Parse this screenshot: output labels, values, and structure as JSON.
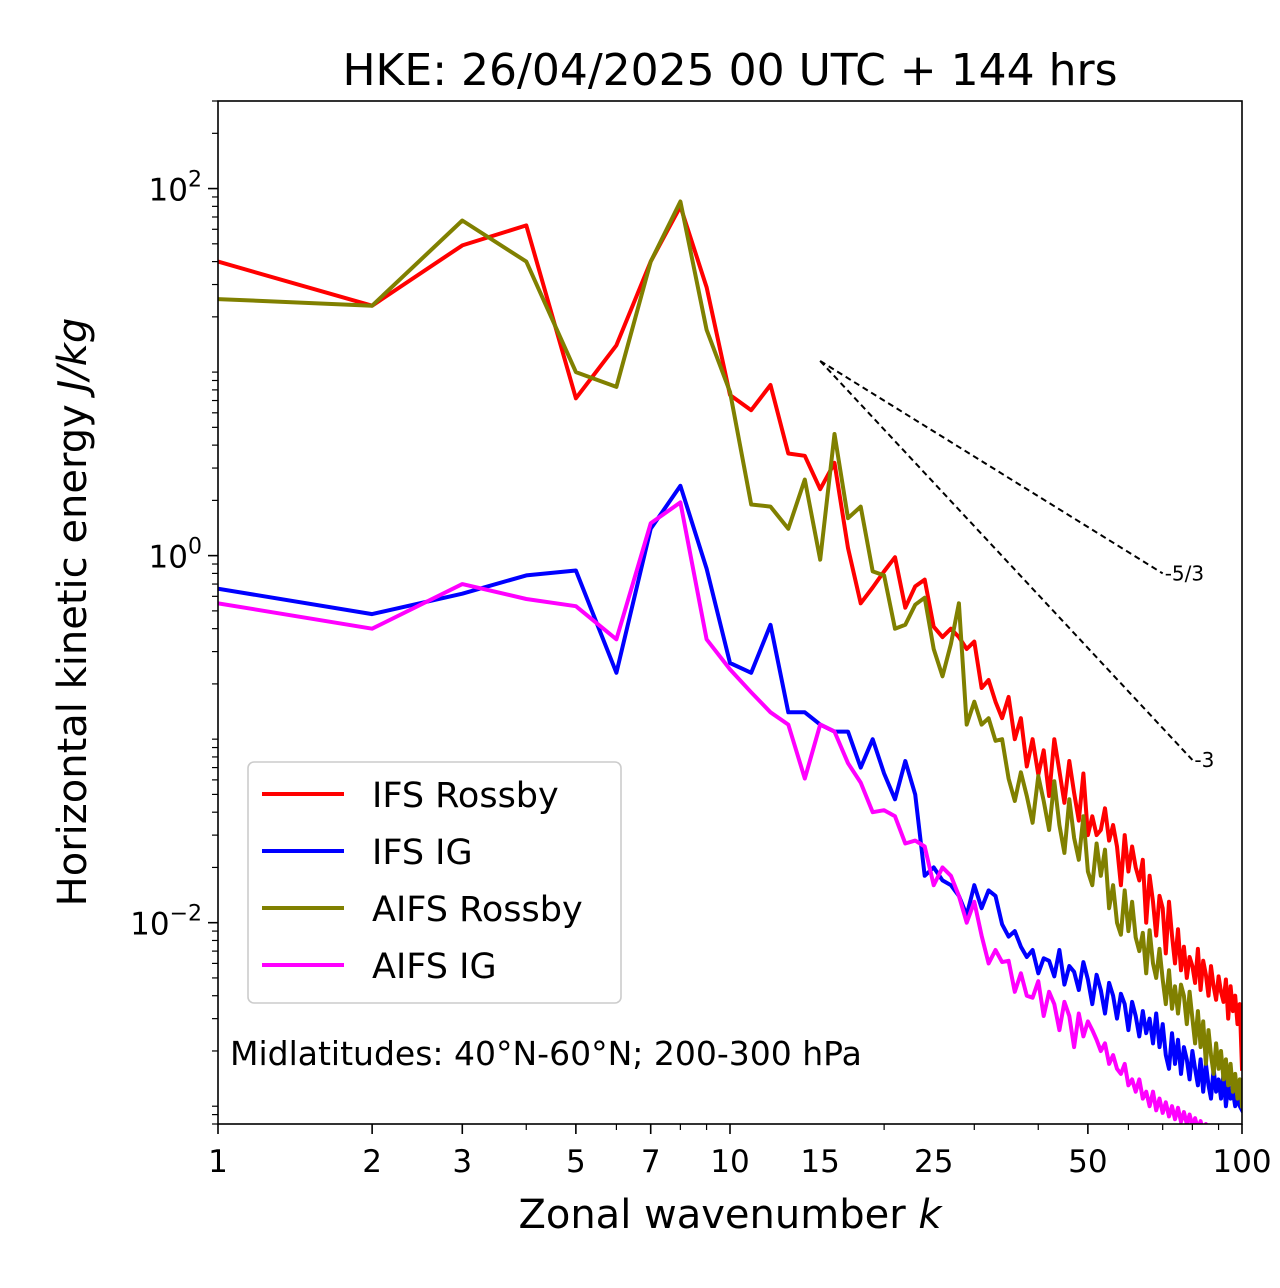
{
  "chart_data": {
    "type": "line",
    "title": "HKE: 26/04/2025 00 UTC + 144 hrs",
    "xlabel": "Zonal wavenumber",
    "xlabel_symbol": "k",
    "ylabel": "Horizontal kinetic energy",
    "ylabel_units": "J/kg",
    "x_scale": "log",
    "y_scale": "log",
    "xlim": [
      1,
      100
    ],
    "ylim": [
      0.0008,
      300
    ],
    "x_ticks": [
      1,
      2,
      3,
      5,
      7,
      10,
      15,
      25,
      50,
      100
    ],
    "x_tick_labels": [
      "1",
      "2",
      "3",
      "5",
      "7",
      "10",
      "15",
      "25",
      "50",
      "100"
    ],
    "y_ticks": [
      0.01,
      1,
      100
    ],
    "y_tick_labels": [
      {
        "base": "10",
        "exp": "−2"
      },
      {
        "base": "10",
        "exp": "0"
      },
      {
        "base": "10",
        "exp": "2"
      }
    ],
    "grid": false,
    "legend_position": "lower-left",
    "annotation": "Midlatitudes: 40°N-60°N; 200-300 hPa",
    "reference_slopes": [
      {
        "label": "-5/3",
        "slope": -1.6667,
        "x": [
          15,
          70
        ],
        "y": [
          11.5,
          0.8
        ]
      },
      {
        "label": "-3",
        "slope": -3,
        "x": [
          15,
          80
        ],
        "y": [
          11.5,
          0.077
        ]
      }
    ],
    "series": [
      {
        "name": "IFS Rossby",
        "color": "#ff0000",
        "x": [
          1,
          2,
          3,
          4,
          5,
          6,
          7,
          8,
          9,
          10,
          11,
          12,
          13,
          14,
          15,
          16,
          17,
          18,
          19,
          20,
          21,
          22,
          23,
          24,
          25,
          26,
          27,
          28,
          29,
          30,
          31,
          32,
          33,
          34,
          35,
          36,
          37,
          38,
          39,
          40,
          41,
          42,
          43,
          44,
          45,
          46,
          47,
          48,
          49,
          50,
          51,
          52,
          53,
          54,
          55,
          56,
          57,
          58,
          59,
          60,
          61,
          62,
          63,
          64,
          65,
          66,
          67,
          68,
          69,
          70,
          71,
          72,
          73,
          74,
          75,
          76,
          77,
          78,
          79,
          80,
          81,
          82,
          83,
          84,
          85,
          86,
          87,
          88,
          89,
          90,
          91,
          92,
          93,
          94,
          95,
          96,
          97,
          98,
          99,
          100
        ],
        "y": [
          40,
          23,
          49,
          63,
          7.2,
          14,
          40,
          80,
          29,
          7.5,
          6.2,
          8.5,
          3.6,
          3.5,
          2.3,
          3.2,
          1.1,
          0.55,
          0.67,
          0.82,
          0.98,
          0.52,
          0.68,
          0.74,
          0.41,
          0.36,
          0.4,
          0.36,
          0.31,
          0.34,
          0.19,
          0.21,
          0.16,
          0.13,
          0.17,
          0.1,
          0.13,
          0.071,
          0.1,
          0.064,
          0.087,
          0.049,
          0.1,
          0.067,
          0.045,
          0.076,
          0.051,
          0.036,
          0.065,
          0.03,
          0.038,
          0.03,
          0.032,
          0.042,
          0.028,
          0.034,
          0.026,
          0.016,
          0.03,
          0.019,
          0.026,
          0.02,
          0.017,
          0.022,
          0.01,
          0.018,
          0.013,
          0.0085,
          0.014,
          0.012,
          0.0068,
          0.013,
          0.0085,
          0.006,
          0.0092,
          0.0055,
          0.0074,
          0.005,
          0.0065,
          0.0058,
          0.0047,
          0.0072,
          0.0043,
          0.0062,
          0.0052,
          0.004,
          0.0058,
          0.0045,
          0.0038,
          0.0051,
          0.0042,
          0.0037,
          0.0049,
          0.003,
          0.0045,
          0.0033,
          0.004,
          0.0028,
          0.0036,
          0.0016
        ]
      },
      {
        "name": "IFS IG",
        "color": "#0000ff",
        "x": [
          1,
          2,
          3,
          4,
          5,
          6,
          7,
          8,
          9,
          10,
          11,
          12,
          13,
          14,
          15,
          16,
          17,
          18,
          19,
          20,
          21,
          22,
          23,
          24,
          25,
          26,
          27,
          28,
          29,
          30,
          31,
          32,
          33,
          34,
          35,
          36,
          37,
          38,
          39,
          40,
          41,
          42,
          43,
          44,
          45,
          46,
          47,
          48,
          49,
          50,
          51,
          52,
          53,
          54,
          55,
          56,
          57,
          58,
          59,
          60,
          61,
          62,
          63,
          64,
          65,
          66,
          67,
          68,
          69,
          70,
          71,
          72,
          73,
          74,
          75,
          76,
          77,
          78,
          79,
          80,
          81,
          82,
          83,
          84,
          85,
          86,
          87,
          88,
          89,
          90,
          91,
          92,
          93,
          94,
          95,
          96,
          97,
          98,
          99,
          100
        ],
        "y": [
          0.66,
          0.48,
          0.62,
          0.78,
          0.83,
          0.23,
          1.4,
          2.4,
          0.85,
          0.26,
          0.23,
          0.42,
          0.14,
          0.14,
          0.12,
          0.11,
          0.11,
          0.07,
          0.1,
          0.065,
          0.047,
          0.076,
          0.05,
          0.018,
          0.02,
          0.017,
          0.016,
          0.014,
          0.011,
          0.016,
          0.012,
          0.015,
          0.014,
          0.0098,
          0.0084,
          0.009,
          0.0074,
          0.0065,
          0.0071,
          0.0053,
          0.0064,
          0.0062,
          0.0051,
          0.0071,
          0.0046,
          0.0058,
          0.0054,
          0.0043,
          0.0061,
          0.0049,
          0.0036,
          0.0052,
          0.0043,
          0.0032,
          0.0047,
          0.004,
          0.003,
          0.0041,
          0.0036,
          0.0026,
          0.0037,
          0.0031,
          0.0024,
          0.0033,
          0.0025,
          0.003,
          0.0022,
          0.0032,
          0.0021,
          0.0028,
          0.0019,
          0.0016,
          0.0025,
          0.0017,
          0.0023,
          0.0015,
          0.0021,
          0.0018,
          0.0014,
          0.002,
          0.0016,
          0.0013,
          0.0018,
          0.0012,
          0.0017,
          0.0013,
          0.0011,
          0.0016,
          0.0012,
          0.0014,
          0.0011,
          0.0015,
          0.001,
          0.0013,
          0.0011,
          0.0012,
          0.001,
          0.0011,
          0.001,
          0.00095
        ]
      },
      {
        "name": "AIFS Rossby",
        "color": "#808000",
        "x": [
          1,
          2,
          3,
          4,
          5,
          6,
          7,
          8,
          9,
          10,
          11,
          12,
          13,
          14,
          15,
          16,
          17,
          18,
          19,
          20,
          21,
          22,
          23,
          24,
          25,
          26,
          27,
          28,
          29,
          30,
          31,
          32,
          33,
          34,
          35,
          36,
          37,
          38,
          39,
          40,
          41,
          42,
          43,
          44,
          45,
          46,
          47,
          48,
          49,
          50,
          51,
          52,
          53,
          54,
          55,
          56,
          57,
          58,
          59,
          60,
          61,
          62,
          63,
          64,
          65,
          66,
          67,
          68,
          69,
          70,
          71,
          72,
          73,
          74,
          75,
          76,
          77,
          78,
          79,
          80,
          81,
          82,
          83,
          84,
          85,
          86,
          87,
          88,
          89,
          90,
          91,
          92,
          93,
          94,
          95,
          96,
          97,
          98,
          99,
          100
        ],
        "y": [
          25,
          23,
          67,
          40,
          10,
          8.3,
          40,
          85,
          17,
          7.8,
          1.9,
          1.85,
          1.4,
          2.6,
          0.95,
          4.6,
          1.6,
          1.85,
          0.82,
          0.78,
          0.4,
          0.42,
          0.54,
          0.59,
          0.31,
          0.22,
          0.33,
          0.55,
          0.12,
          0.16,
          0.12,
          0.13,
          0.098,
          0.1,
          0.061,
          0.046,
          0.066,
          0.049,
          0.035,
          0.063,
          0.046,
          0.032,
          0.059,
          0.034,
          0.024,
          0.047,
          0.029,
          0.022,
          0.038,
          0.019,
          0.016,
          0.027,
          0.018,
          0.025,
          0.012,
          0.016,
          0.01,
          0.0086,
          0.015,
          0.009,
          0.013,
          0.0083,
          0.007,
          0.0088,
          0.0053,
          0.0091,
          0.006,
          0.005,
          0.0072,
          0.0049,
          0.0036,
          0.0055,
          0.0034,
          0.0045,
          0.0032,
          0.0046,
          0.004,
          0.0028,
          0.0042,
          0.003,
          0.0022,
          0.0033,
          0.0021,
          0.0029,
          0.0017,
          0.0026,
          0.0019,
          0.0015,
          0.0022,
          0.0016,
          0.002,
          0.0014,
          0.0018,
          0.0013,
          0.0017,
          0.0012,
          0.0015,
          0.0011,
          0.0014,
          0.001
        ]
      },
      {
        "name": "AIFS IG",
        "color": "#ff00ff",
        "x": [
          1,
          2,
          3,
          4,
          5,
          6,
          7,
          8,
          9,
          10,
          11,
          12,
          13,
          14,
          15,
          16,
          17,
          18,
          19,
          20,
          21,
          22,
          23,
          24,
          25,
          26,
          27,
          28,
          29,
          30,
          31,
          32,
          33,
          34,
          35,
          36,
          37,
          38,
          39,
          40,
          41,
          42,
          43,
          44,
          45,
          46,
          47,
          48,
          49,
          50,
          51,
          52,
          53,
          54,
          55,
          56,
          57,
          58,
          59,
          60,
          61,
          62,
          63,
          64,
          65,
          66,
          67,
          68,
          69,
          70,
          71,
          72,
          73,
          74,
          75,
          76,
          77,
          78,
          79,
          80,
          81,
          82,
          83,
          84,
          85,
          86,
          87,
          88,
          89,
          90,
          91,
          92,
          93,
          94,
          95,
          96,
          97,
          98,
          99,
          100
        ],
        "y": [
          0.55,
          0.4,
          0.7,
          0.58,
          0.53,
          0.35,
          1.5,
          1.95,
          0.35,
          0.24,
          0.18,
          0.14,
          0.12,
          0.061,
          0.12,
          0.11,
          0.074,
          0.058,
          0.04,
          0.041,
          0.038,
          0.027,
          0.028,
          0.026,
          0.016,
          0.02,
          0.018,
          0.014,
          0.01,
          0.013,
          0.0085,
          0.006,
          0.0071,
          0.0061,
          0.0062,
          0.0042,
          0.0053,
          0.004,
          0.0039,
          0.0048,
          0.0031,
          0.0042,
          0.0036,
          0.0026,
          0.0037,
          0.0031,
          0.0021,
          0.0032,
          0.0024,
          0.0029,
          0.0026,
          0.0023,
          0.002,
          0.0022,
          0.0017,
          0.0019,
          0.0016,
          0.0015,
          0.0017,
          0.0013,
          0.0014,
          0.0012,
          0.0014,
          0.0011,
          0.0012,
          0.001,
          0.0012,
          0.00095,
          0.0011,
          0.00092,
          0.00105,
          0.00088,
          0.001,
          0.00085,
          0.00098,
          0.00082,
          0.00093,
          0.0008,
          0.0009,
          0.00078,
          0.00086,
          0.00075,
          0.00083,
          0.00072,
          0.0008,
          0.0007,
          0.00078,
          0.00068,
          0.00075,
          0.00066,
          0.00072,
          0.00064,
          0.0007,
          0.00062,
          0.00068,
          0.0006,
          0.00066,
          0.00058,
          0.00064,
          0.00056
        ]
      }
    ]
  }
}
